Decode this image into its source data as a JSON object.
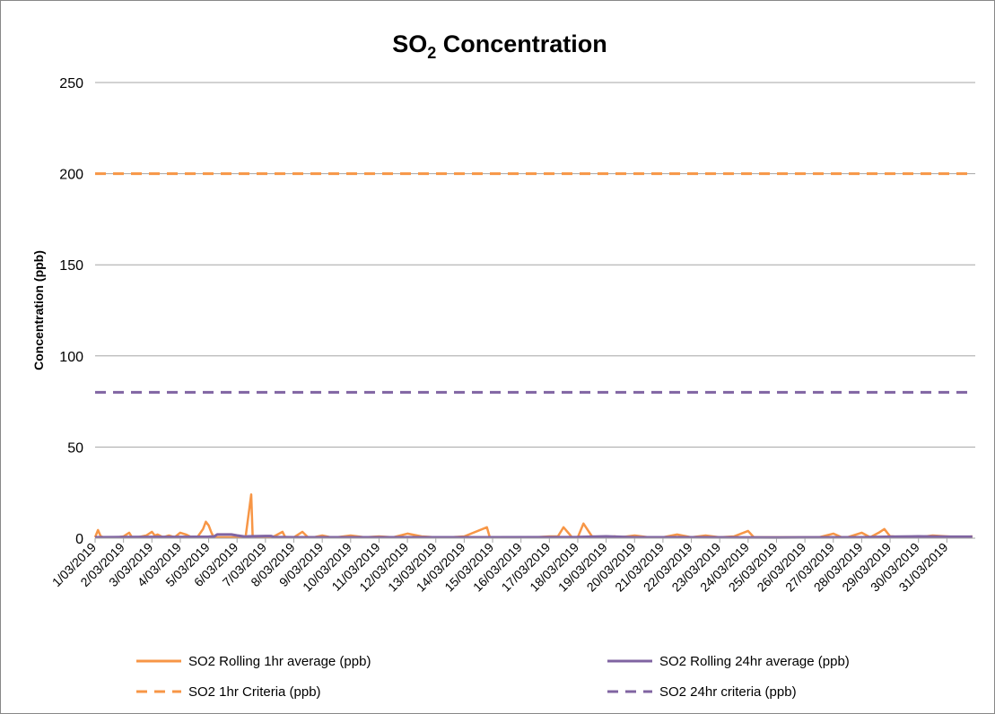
{
  "chart_data": {
    "type": "line",
    "title": "SO",
    "title_sub": "2",
    "title_rest": " Concentration",
    "ylabel": "Concentration (ppb)",
    "xlabel": "",
    "ylim": [
      0,
      250
    ],
    "yticks": [
      0,
      50,
      100,
      150,
      200,
      250
    ],
    "grid": true,
    "legend_position": "bottom",
    "categories": [
      "1/03/2019",
      "2/03/2019",
      "3/03/2019",
      "4/03/2019",
      "5/03/2019",
      "6/03/2019",
      "7/03/2019",
      "8/03/2019",
      "9/03/2019",
      "10/03/2019",
      "11/03/2019",
      "12/03/2019",
      "13/03/2019",
      "14/03/2019",
      "15/03/2019",
      "16/03/2019",
      "17/03/2019",
      "18/03/2019",
      "19/03/2019",
      "20/03/2019",
      "21/03/2019",
      "22/03/2019",
      "23/03/2019",
      "24/03/2019",
      "25/03/2019",
      "26/03/2019",
      "27/03/2019",
      "28/03/2019",
      "29/03/2019",
      "30/03/2019",
      "31/03/2019"
    ],
    "series": [
      {
        "name": "SO2 Rolling 1hr average (ppb)",
        "color": "#f79646",
        "style": "solid",
        "x": [
          1.0,
          1.1,
          1.2,
          1.3,
          1.5,
          1.8,
          2.0,
          2.2,
          2.3,
          2.5,
          2.8,
          3.0,
          3.1,
          3.2,
          3.4,
          3.6,
          3.8,
          4.0,
          4.2,
          4.4,
          4.6,
          4.8,
          4.9,
          5.0,
          5.1,
          5.15,
          5.2,
          5.3,
          5.4,
          5.6,
          5.8,
          6.0,
          6.3,
          6.5,
          6.55,
          6.6,
          6.8,
          7.0,
          7.3,
          7.6,
          7.7,
          7.8,
          8.0,
          8.3,
          8.5,
          8.6,
          8.7,
          9.0,
          9.3,
          9.5,
          10.0,
          10.5,
          11.0,
          11.5,
          12.0,
          12.5,
          13.0,
          13.5,
          14.0,
          14.8,
          14.9,
          15.0,
          15.5,
          16.0,
          16.5,
          17.0,
          17.3,
          17.5,
          17.8,
          18.0,
          18.2,
          18.5,
          18.9,
          19.0,
          19.1,
          19.3,
          19.5,
          20.0,
          20.5,
          21.0,
          21.5,
          22.0,
          22.5,
          23.0,
          23.5,
          24.0,
          24.2,
          24.5,
          25.0,
          25.5,
          26.0,
          26.5,
          27.0,
          27.3,
          27.5,
          28.0,
          28.3,
          28.6,
          28.8,
          29.0,
          29.1,
          29.3,
          29.5,
          30.0,
          30.5,
          31.0,
          31.5,
          31.9
        ],
        "y": [
          0.5,
          4.5,
          1.0,
          0.5,
          0.5,
          0.5,
          1.0,
          3.0,
          0.5,
          0.5,
          1.5,
          3.5,
          1.5,
          2.0,
          0.5,
          1.5,
          0.5,
          3.0,
          2.0,
          0.5,
          0.5,
          5.0,
          9.0,
          7.0,
          3.0,
          1.5,
          0.5,
          0.5,
          0.5,
          0.5,
          0.5,
          0.5,
          0.5,
          24.0,
          1.0,
          1.0,
          0.5,
          0.5,
          1.0,
          3.5,
          0.5,
          0.5,
          0.5,
          3.5,
          0.5,
          0.5,
          0.5,
          1.5,
          0.5,
          0.5,
          1.5,
          0.5,
          1.0,
          0.5,
          2.5,
          1.0,
          0.5,
          0.5,
          1.0,
          6.0,
          0.5,
          0.5,
          0.5,
          0.5,
          0.5,
          1.0,
          1.0,
          6.0,
          0.5,
          0.5,
          8.0,
          1.0,
          0.5,
          0.5,
          0.5,
          1.0,
          0.5,
          1.5,
          0.5,
          0.5,
          2.0,
          0.5,
          1.5,
          0.5,
          1.0,
          4.0,
          0.5,
          0.5,
          0.5,
          0.5,
          0.5,
          0.5,
          2.5,
          0.5,
          0.5,
          3.0,
          0.5,
          3.0,
          5.0,
          1.0,
          1.0,
          0.5,
          0.5,
          0.5,
          1.5,
          1.0,
          0.5,
          1.0
        ]
      },
      {
        "name": "SO2 Rolling 24hr average (ppb)",
        "color": "#8064a2",
        "style": "solid",
        "x": [
          1.0,
          2.0,
          3.0,
          4.0,
          5.0,
          5.2,
          5.3,
          5.8,
          6.0,
          6.3,
          6.4,
          7.0,
          7.2,
          7.3,
          8.0,
          9.0,
          10.0,
          12.0,
          15.0,
          18.0,
          19.0,
          20.0,
          22.0,
          25.0,
          28.0,
          29.0,
          30.0,
          31.0,
          31.9
        ],
        "y": [
          0.5,
          0.6,
          0.7,
          0.7,
          0.8,
          1.0,
          2.0,
          2.0,
          1.5,
          0.8,
          1.0,
          1.2,
          1.2,
          0.6,
          0.5,
          0.5,
          0.5,
          0.5,
          0.5,
          0.6,
          1.0,
          0.5,
          0.5,
          0.4,
          0.5,
          0.8,
          1.0,
          0.8,
          0.8
        ]
      },
      {
        "name": "SO2 1hr Criteria (ppb)",
        "color": "#f79646",
        "style": "dashed",
        "x": [
          1.0,
          31.9
        ],
        "y": [
          200,
          200
        ]
      },
      {
        "name": "SO2 24hr criteria (ppb)",
        "color": "#8064a2",
        "style": "dashed",
        "x": [
          1.0,
          31.9
        ],
        "y": [
          80,
          80
        ]
      }
    ]
  }
}
